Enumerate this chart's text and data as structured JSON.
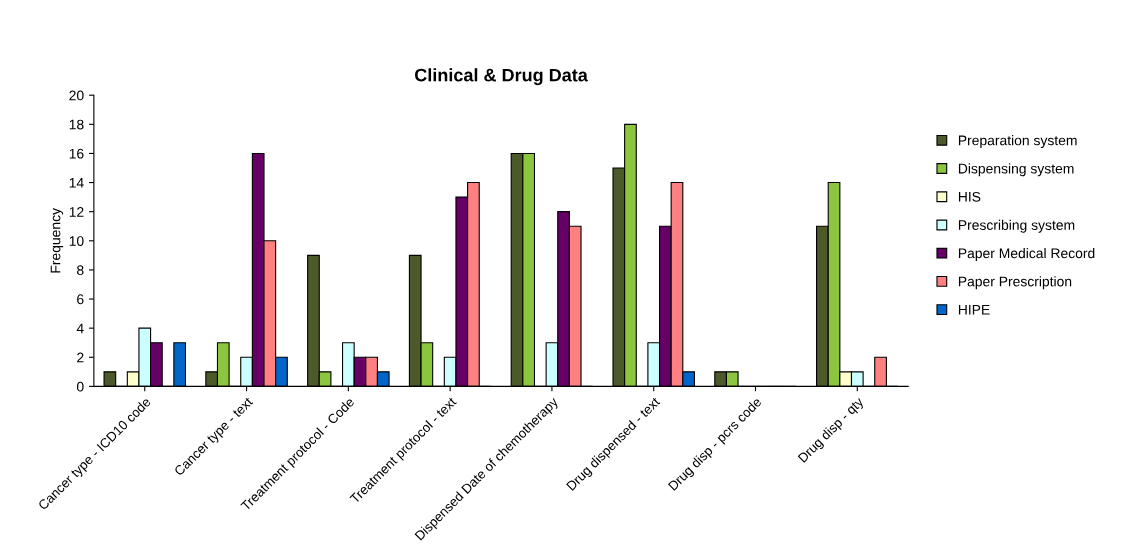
{
  "chart_data": {
    "type": "bar",
    "title": "Clinical & Drug Data",
    "ylabel": "Frequency",
    "categories": [
      "Cancer type - ICD10 code",
      "Cancer type - text",
      "Treatment protocol - Code",
      "Treatment protocol - text",
      "Dispensed Date of chemotherapy",
      "Drug dispensed - text",
      "Drug disp - pcrs code",
      "Drug disp - qty"
    ],
    "series": [
      {
        "name": "Preparation system",
        "color": "#4b5a28",
        "values": [
          1,
          1,
          9,
          9,
          16,
          15,
          1,
          11
        ]
      },
      {
        "name": "Dispensing system",
        "color": "#8cc63f",
        "values": [
          0,
          3,
          1,
          3,
          16,
          18,
          1,
          14
        ]
      },
      {
        "name": "HIS",
        "color": "#ffffcc",
        "values": [
          1,
          0,
          0,
          0,
          0,
          0,
          0,
          1
        ]
      },
      {
        "name": "Prescribing system",
        "color": "#ccffff",
        "values": [
          4,
          2,
          3,
          2,
          3,
          3,
          0,
          1
        ]
      },
      {
        "name": "Paper Medical Record",
        "color": "#660066",
        "values": [
          3,
          16,
          2,
          13,
          12,
          11,
          0,
          0
        ]
      },
      {
        "name": "Paper Prescription",
        "color": "#ff8080",
        "values": [
          0,
          10,
          2,
          14,
          11,
          14,
          0,
          2
        ]
      },
      {
        "name": "HIPE",
        "color": "#0066cc",
        "values": [
          3,
          2,
          1,
          0,
          0,
          1,
          0,
          0
        ]
      }
    ],
    "ylim": [
      0,
      20
    ],
    "yticks": [
      0,
      2,
      4,
      6,
      8,
      10,
      12,
      14,
      16,
      18,
      20
    ],
    "grid": false,
    "legend": "right"
  }
}
